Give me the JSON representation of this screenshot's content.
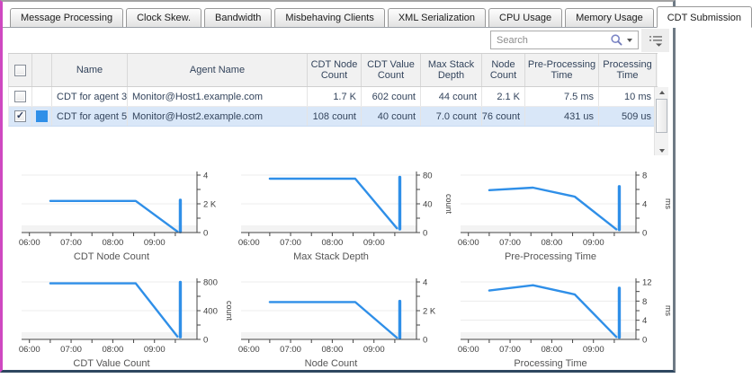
{
  "tabs": [
    {
      "label": "Message Processing",
      "active": false
    },
    {
      "label": "Clock Skew.",
      "active": false
    },
    {
      "label": "Bandwidth",
      "active": false
    },
    {
      "label": "Misbehaving Clients",
      "active": false
    },
    {
      "label": "XML Serialization",
      "active": false
    },
    {
      "label": "CPU Usage",
      "active": false
    },
    {
      "label": "Memory Usage",
      "active": false
    },
    {
      "label": "CDT Submission",
      "active": true
    }
  ],
  "toolbar": {
    "search_placeholder": "Search"
  },
  "table": {
    "columns": {
      "name": "Name",
      "agent": "Agent Name",
      "cdt_node_count": "CDT Node Count",
      "cdt_value_count": "CDT Value Count",
      "max_stack_depth": "Max Stack Depth",
      "node_count": "Node Count",
      "pre_processing_time": "Pre-Processing Time",
      "processing_time": "Processing Time"
    },
    "rows": [
      {
        "checked": false,
        "check_glyph": "",
        "color": "",
        "selected": false,
        "name": "CDT for agent 3",
        "agent": "Monitor@Host1.example.com",
        "cdt_node_count": "1.7 K",
        "cdt_value_count": "602 count",
        "max_stack_depth": "44 count",
        "node_count": "2.1 K",
        "pre_processing_time": "7.5 ms",
        "processing_time": "10 ms"
      },
      {
        "checked": true,
        "check_glyph": "✓",
        "color": "#2f8fe8",
        "selected": true,
        "name": "CDT for agent 5",
        "agent": "Monitor@Host2.example.com",
        "cdt_node_count": "108 count",
        "cdt_value_count": "40 count",
        "max_stack_depth": "7.0 count",
        "node_count": "76 count",
        "pre_processing_time": "431 us",
        "processing_time": "509 us"
      }
    ]
  },
  "chart_data": [
    {
      "type": "line",
      "title": "CDT Node Count",
      "unit": "",
      "ymax": 4,
      "yminor": 1,
      "yticks": [
        [
          0,
          "0"
        ],
        [
          2,
          "2 K"
        ],
        [
          4,
          "4"
        ]
      ],
      "xticks": [
        [
          6,
          "06:00"
        ],
        [
          7,
          "07:00"
        ],
        [
          8,
          "08:00"
        ],
        [
          9,
          "09:00"
        ]
      ],
      "xminor": 0.5,
      "xdomain": [
        5.92,
        10.02
      ],
      "line": [
        [
          6.5,
          2.2
        ],
        [
          8.55,
          2.2
        ],
        [
          9.55,
          0.07
        ]
      ],
      "spike": {
        "x": 9.62,
        "from": 0.05,
        "to": 2.25
      }
    },
    {
      "type": "line",
      "title": "Max Stack Depth",
      "unit": "count",
      "ymax": 80,
      "yminor": 20,
      "yticks": [
        [
          0,
          "0"
        ],
        [
          40,
          "40"
        ],
        [
          80,
          "80"
        ]
      ],
      "xticks": [
        [
          6,
          "06:00"
        ],
        [
          7,
          "07:00"
        ],
        [
          8,
          "08:00"
        ],
        [
          9,
          "09:00"
        ]
      ],
      "xminor": 0.5,
      "xdomain": [
        5.92,
        10.02
      ],
      "line": [
        [
          6.5,
          75
        ],
        [
          8.55,
          75
        ],
        [
          9.55,
          6
        ]
      ],
      "spike": {
        "x": 9.62,
        "from": 5,
        "to": 77
      }
    },
    {
      "type": "line",
      "title": "Pre-Processing Time",
      "unit": "ms",
      "ymax": 8,
      "yminor": 2,
      "yticks": [
        [
          0,
          "0"
        ],
        [
          4,
          "4"
        ],
        [
          8,
          "8"
        ]
      ],
      "xticks": [
        [
          6,
          "06:00"
        ],
        [
          7,
          "07:00"
        ],
        [
          8,
          "08:00"
        ],
        [
          9,
          "09:00"
        ]
      ],
      "xminor": 0.5,
      "xdomain": [
        5.92,
        10.02
      ],
      "line": [
        [
          6.5,
          5.9
        ],
        [
          7.55,
          6.25
        ],
        [
          8.55,
          5.0
        ],
        [
          9.55,
          0.45
        ]
      ],
      "spike": {
        "x": 9.62,
        "from": 0.4,
        "to": 6.4
      }
    },
    {
      "type": "line",
      "title": "CDT Value Count",
      "unit": "count",
      "ymax": 800,
      "yminor": 200,
      "yticks": [
        [
          0,
          "0"
        ],
        [
          400,
          "400"
        ],
        [
          800,
          "800"
        ]
      ],
      "xticks": [
        [
          6,
          "06:00"
        ],
        [
          7,
          "07:00"
        ],
        [
          8,
          "08:00"
        ],
        [
          9,
          "09:00"
        ]
      ],
      "xminor": 0.5,
      "xdomain": [
        5.92,
        10.02
      ],
      "line": [
        [
          6.5,
          780
        ],
        [
          8.55,
          780
        ],
        [
          9.55,
          40
        ]
      ],
      "spike": {
        "x": 9.62,
        "from": 35,
        "to": 795
      }
    },
    {
      "type": "line",
      "title": "Node Count",
      "unit": "",
      "ymax": 4,
      "yminor": 1,
      "yticks": [
        [
          0,
          "0"
        ],
        [
          2,
          "2 K"
        ],
        [
          4,
          "4"
        ]
      ],
      "xticks": [
        [
          6,
          "06:00"
        ],
        [
          7,
          "07:00"
        ],
        [
          8,
          "08:00"
        ],
        [
          9,
          "09:00"
        ]
      ],
      "xminor": 0.5,
      "xdomain": [
        5.92,
        10.02
      ],
      "line": [
        [
          6.5,
          2.6
        ],
        [
          8.55,
          2.6
        ],
        [
          9.55,
          0.12
        ]
      ],
      "spike": {
        "x": 9.62,
        "from": 0.1,
        "to": 2.65
      }
    },
    {
      "type": "line",
      "title": "Processing Time",
      "unit": "ms",
      "ymax": 12,
      "yminor": 2,
      "yticks": [
        [
          0,
          "0"
        ],
        [
          4,
          "4"
        ],
        [
          8,
          "8"
        ],
        [
          12,
          "12"
        ]
      ],
      "xticks": [
        [
          6,
          "06:00"
        ],
        [
          7,
          "07:00"
        ],
        [
          8,
          "08:00"
        ],
        [
          9,
          "09:00"
        ]
      ],
      "xminor": 0.5,
      "xdomain": [
        5.92,
        10.02
      ],
      "line": [
        [
          6.5,
          10.2
        ],
        [
          7.55,
          11.3
        ],
        [
          8.55,
          9.4
        ],
        [
          9.55,
          0.5
        ]
      ],
      "spike": {
        "x": 9.62,
        "from": 0.45,
        "to": 10.7
      }
    }
  ],
  "colors": {
    "accent": "#2f8fe8",
    "selection_bg": "#d9e7f8"
  }
}
